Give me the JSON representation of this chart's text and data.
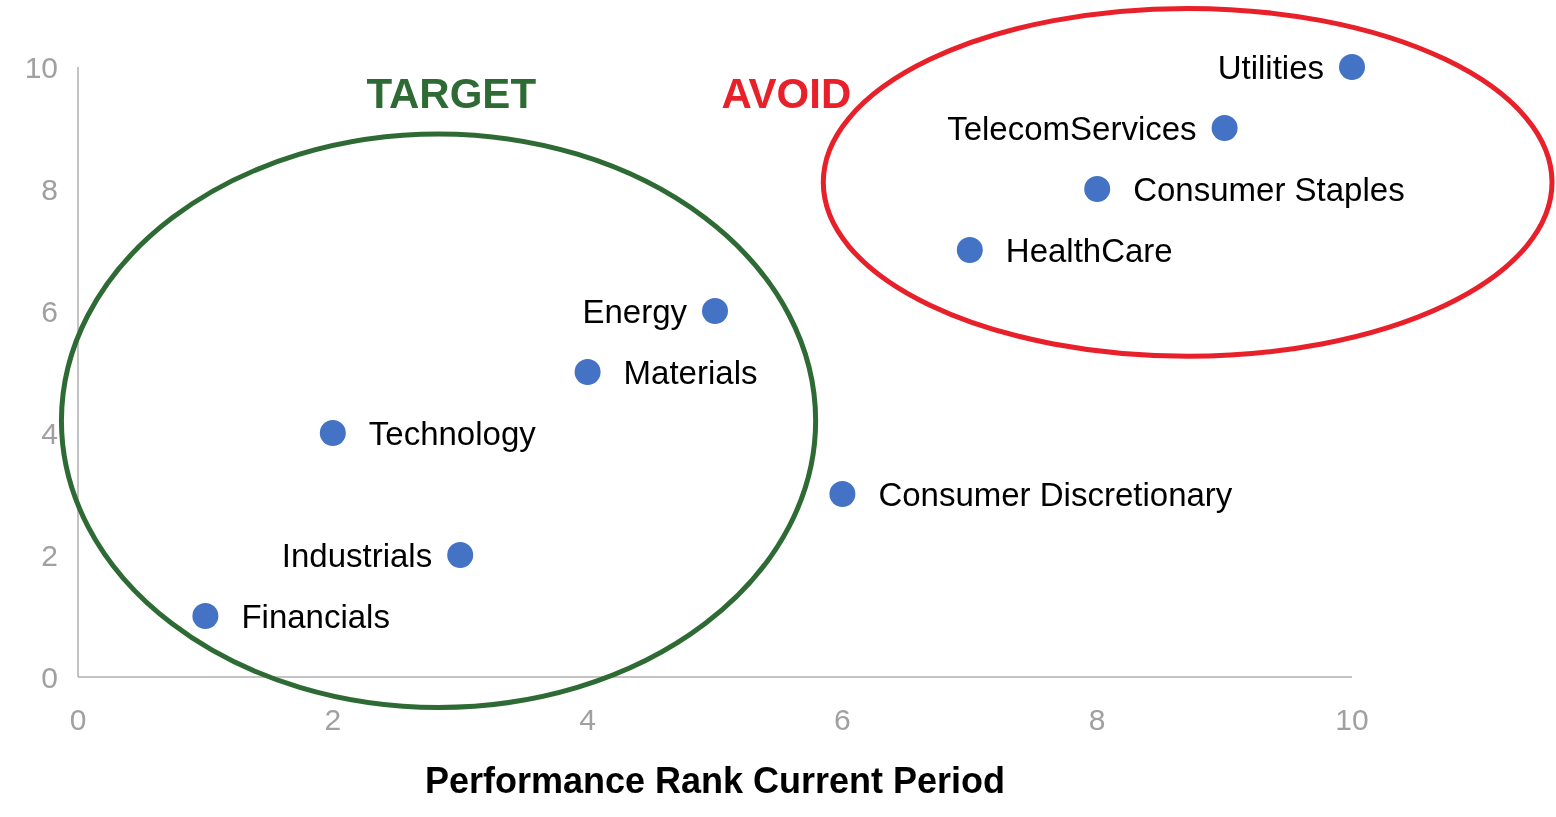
{
  "chart_data": {
    "type": "scatter",
    "xlabel": "Performance Rank Current Period",
    "x": [
      1,
      3,
      2,
      4,
      5,
      6,
      7,
      8,
      9,
      10
    ],
    "values": [
      1,
      2,
      4,
      5,
      6,
      3,
      7,
      8,
      9,
      10
    ],
    "color": "#4472c4",
    "marker": "circle",
    "xlim": [
      0,
      10
    ],
    "ylim": [
      0,
      10
    ],
    "xticks": [
      0,
      2,
      4,
      6,
      8,
      10
    ],
    "yticks": [
      0,
      2,
      4,
      6,
      8,
      10
    ],
    "annotations": [
      {
        "text": "Financials",
        "x": 1,
        "y": 1
      },
      {
        "text": "Industrials",
        "x": 3,
        "y": 2
      },
      {
        "text": "Technology",
        "x": 2,
        "y": 4
      },
      {
        "text": "Materials",
        "x": 4,
        "y": 5
      },
      {
        "text": "Energy",
        "x": 5,
        "y": 6
      },
      {
        "text": "Consumer Discretionary",
        "x": 6,
        "y": 3
      },
      {
        "text": "HealthCare",
        "x": 7,
        "y": 7
      },
      {
        "text": "Consumer Staples",
        "x": 8,
        "y": 8
      },
      {
        "text": "TelecomServices",
        "x": 9,
        "y": 9
      },
      {
        "text": "Utilities",
        "x": 10,
        "y": 10
      },
      "TARGET",
      "AVOID"
    ]
  }
}
